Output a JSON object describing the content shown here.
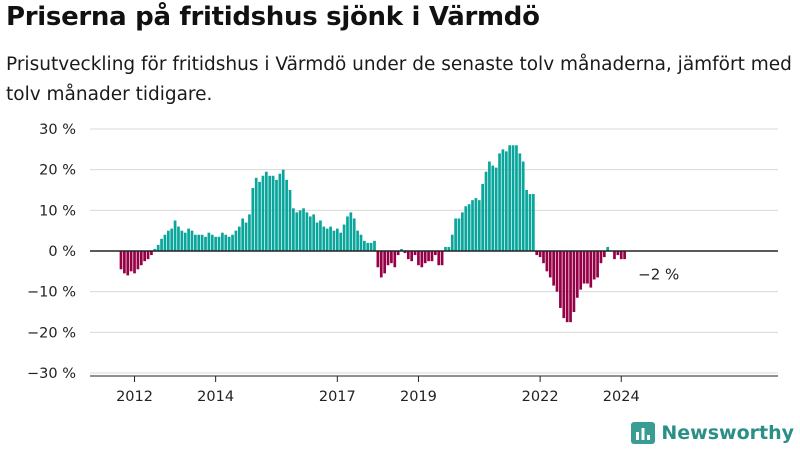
{
  "title": "Priserna på fritidshus sjönk i Värmdö",
  "subtitle": "Prisutveckling för fritidshus i Värmdö under de senaste tolv månaderna, jämfört med tolv månader tidigare.",
  "brand": "Newsworthy",
  "colors": {
    "positive": "#0aa59b",
    "negative": "#960047",
    "grid": "#d8d8d8",
    "zero_line": "#222222",
    "brand": "#2a8f86"
  },
  "chart_data": {
    "type": "bar",
    "unit": "%",
    "frequency": "monthly",
    "start": "2011-09",
    "ylim": [
      -30,
      30
    ],
    "y_ticks": [
      30,
      20,
      10,
      0,
      -10,
      -20,
      -30
    ],
    "y_tick_labels": [
      "30 %",
      "20 %",
      "10 %",
      "0 %",
      "−10 %",
      "−20 %",
      "−30 %"
    ],
    "x_ticks": [
      {
        "label": "2012",
        "date": "2012-01"
      },
      {
        "label": "2014",
        "date": "2014-01"
      },
      {
        "label": "2017",
        "date": "2017-01"
      },
      {
        "label": "2019",
        "date": "2019-01"
      },
      {
        "label": "2022",
        "date": "2022-01"
      },
      {
        "label": "2024",
        "date": "2024-01"
      }
    ],
    "annotation": {
      "text": "−2 %",
      "date": "2024-06"
    },
    "values": [
      -4.5,
      -5.5,
      -6.0,
      -5.0,
      -5.5,
      -4.5,
      -3.5,
      -2.5,
      -2.0,
      -1.0,
      0.5,
      1.5,
      3.0,
      4.0,
      5.0,
      5.5,
      7.5,
      6.0,
      5.0,
      4.5,
      5.5,
      5.0,
      4.0,
      4.0,
      4.0,
      3.5,
      4.5,
      4.0,
      3.5,
      3.5,
      4.5,
      4.0,
      3.5,
      4.0,
      5.0,
      6.0,
      8.0,
      7.0,
      9.0,
      15.5,
      18.0,
      17.0,
      18.5,
      19.5,
      18.5,
      18.5,
      17.5,
      19.0,
      20.0,
      17.5,
      15.0,
      10.5,
      9.5,
      10.0,
      10.5,
      9.5,
      8.5,
      9.0,
      7.0,
      7.5,
      6.0,
      5.5,
      6.0,
      5.0,
      5.5,
      4.5,
      6.5,
      8.5,
      9.5,
      8.0,
      5.0,
      4.0,
      2.5,
      2.0,
      2.0,
      2.5,
      -4.0,
      -6.5,
      -5.5,
      -3.5,
      -3.0,
      -4.0,
      -1.0,
      0.5,
      -0.5,
      -2.0,
      -2.5,
      -1.0,
      -3.5,
      -4.0,
      -3.0,
      -2.5,
      -2.5,
      -1.0,
      -3.5,
      -3.5,
      1.0,
      1.0,
      4.0,
      8.0,
      8.0,
      9.5,
      11.0,
      11.5,
      12.5,
      13.0,
      12.5,
      16.5,
      19.5,
      22.0,
      21.0,
      20.5,
      24.0,
      25.0,
      24.5,
      26.0,
      26.0,
      26.0,
      24.0,
      22.0,
      15.0,
      14.0,
      14.0,
      -1.0,
      -1.5,
      -3.0,
      -5.0,
      -6.5,
      -8.5,
      -10.0,
      -14.0,
      -16.5,
      -17.5,
      -17.5,
      -15.0,
      -11.5,
      -9.5,
      -8.0,
      -8.0,
      -9.0,
      -7.0,
      -6.5,
      -3.0,
      -1.5,
      1.0,
      0.0,
      -2.0,
      -1.0,
      -2.0,
      -2.0
    ]
  }
}
